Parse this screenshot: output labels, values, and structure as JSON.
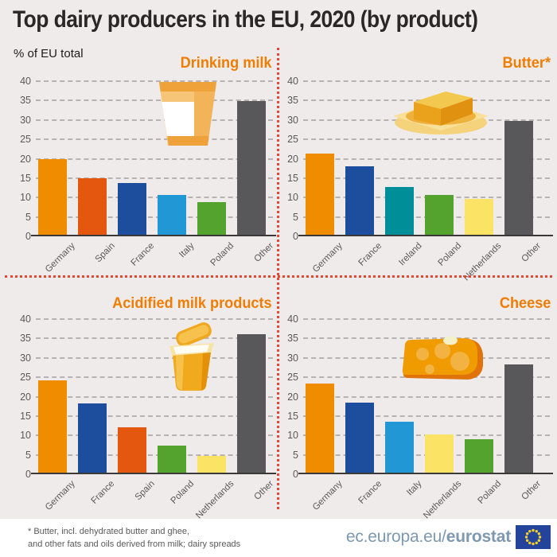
{
  "header": {
    "title": "Top dairy producers in the EU, 2020 (by product)",
    "subtitle": "% of EU total"
  },
  "colors": {
    "background": "#f0ebeb",
    "accent_orange": "#ef7d00",
    "divider_red": "#e8462e",
    "grid_grey": "#b7b3b2",
    "axis_dark": "#3a3a39",
    "label_grey": "#595959",
    "footer_blue": "#7e99af",
    "flag_blue": "#24439b",
    "flag_star_yellow": "#f8d12a"
  },
  "chart_data": [
    {
      "type": "bar",
      "title": "Drinking milk",
      "icon": "milk-glass-icon",
      "ylabel": "% of EU total",
      "ylim": [
        0,
        40
      ],
      "ytick_step": 5,
      "grid": true,
      "legend": "none",
      "categories": [
        "Germany",
        "Spain",
        "France",
        "Italy",
        "Poland",
        "Other"
      ],
      "values": [
        19.4,
        14.6,
        13.3,
        10.3,
        8.4,
        34.5
      ],
      "bar_colors": [
        "#f08c00",
        "#e4570e",
        "#1d4e9e",
        "#2197d6",
        "#55a32f",
        "#58585a"
      ]
    },
    {
      "type": "bar",
      "title": "Butter*",
      "icon": "butter-dish-icon",
      "ylabel": "% of EU total",
      "ylim": [
        0,
        40
      ],
      "ytick_step": 5,
      "grid": true,
      "legend": "none",
      "categories": [
        "Germany",
        "France",
        "Ireland",
        "Poland",
        "Netherlands",
        "Other"
      ],
      "values": [
        21.0,
        17.7,
        12.4,
        10.3,
        9.2,
        29.3
      ],
      "bar_colors": [
        "#f08c00",
        "#1d4e9e",
        "#008f99",
        "#55a32f",
        "#fbe365",
        "#58585a"
      ]
    },
    {
      "type": "bar",
      "title": "Acidified milk products",
      "icon": "yogurt-pot-icon",
      "ylabel": "% of EU total",
      "ylim": [
        0,
        40
      ],
      "ytick_step": 5,
      "grid": true,
      "legend": "none",
      "categories": [
        "Germany",
        "France",
        "Spain",
        "Poland",
        "Netherlands",
        "Other"
      ],
      "values": [
        23.8,
        17.8,
        11.6,
        7.0,
        4.4,
        35.6
      ],
      "bar_colors": [
        "#f08c00",
        "#1d4e9e",
        "#e4570e",
        "#55a32f",
        "#fbe365",
        "#58585a"
      ]
    },
    {
      "type": "bar",
      "title": "Cheese",
      "icon": "cheese-wedge-icon",
      "ylabel": "% of EU total",
      "ylim": [
        0,
        40
      ],
      "ytick_step": 5,
      "grid": true,
      "legend": "none",
      "categories": [
        "Germany",
        "France",
        "Italy",
        "Netherlands",
        "Poland",
        "Other"
      ],
      "values": [
        23.0,
        18.1,
        13.2,
        9.8,
        8.7,
        27.8
      ],
      "bar_colors": [
        "#f08c00",
        "#1d4e9e",
        "#2197d6",
        "#fbe365",
        "#55a32f",
        "#58585a"
      ]
    }
  ],
  "footer": {
    "footnote_line1": "* Butter, incl. dehydrated butter and ghee,",
    "footnote_line2": "and other fats and oils derived from milk; dairy spreads",
    "site_prefix": "ec.europa.eu/",
    "site_bold": "eurostat"
  }
}
